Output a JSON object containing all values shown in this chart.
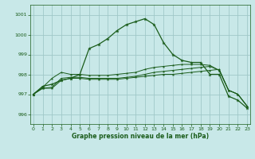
{
  "title": "Graphe pression niveau de la mer (hPa)",
  "background_color": "#c8e8e8",
  "grid_color": "#a0c8c8",
  "line_color": "#1a5c1a",
  "x_ticks": [
    0,
    1,
    2,
    3,
    4,
    5,
    6,
    7,
    8,
    9,
    10,
    11,
    12,
    13,
    14,
    15,
    16,
    17,
    18,
    19,
    20,
    21,
    22,
    23
  ],
  "ylim": [
    995.5,
    1001.5
  ],
  "y_ticks": [
    996,
    997,
    998,
    999,
    1000,
    1001
  ],
  "series1": [
    997.0,
    997.4,
    997.5,
    997.7,
    997.8,
    998.0,
    999.3,
    999.5,
    999.8,
    1000.2,
    1000.5,
    1000.65,
    1000.8,
    1000.5,
    999.6,
    999.0,
    998.7,
    998.6,
    998.6,
    998.0,
    998.0,
    996.9,
    996.7,
    996.3
  ],
  "series2": [
    997.0,
    997.3,
    997.3,
    997.7,
    997.8,
    997.8,
    997.75,
    997.75,
    997.75,
    997.75,
    997.8,
    997.85,
    997.9,
    997.95,
    998.0,
    998.0,
    998.05,
    998.1,
    998.15,
    998.2,
    998.25,
    997.2,
    997.0,
    996.4
  ],
  "series3": [
    997.0,
    997.3,
    997.35,
    997.8,
    997.85,
    997.85,
    997.8,
    997.8,
    997.8,
    997.8,
    997.85,
    997.9,
    998.0,
    998.1,
    998.15,
    998.2,
    998.25,
    998.3,
    998.35,
    998.4,
    998.2,
    997.2,
    997.0,
    996.4
  ],
  "series4": [
    997.0,
    997.35,
    997.8,
    998.1,
    998.0,
    998.0,
    997.95,
    997.95,
    997.95,
    998.0,
    998.05,
    998.1,
    998.25,
    998.35,
    998.4,
    998.45,
    998.5,
    998.5,
    998.5,
    998.45,
    998.2,
    997.2,
    997.0,
    996.4
  ]
}
